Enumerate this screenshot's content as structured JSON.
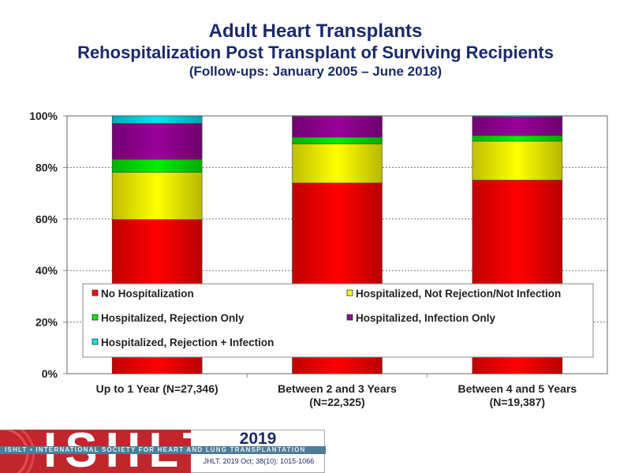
{
  "chart_data": {
    "type": "bar",
    "stacked": true,
    "title": "Adult Heart Transplants",
    "subtitle": "Rehospitalization Post Transplant of Surviving Recipients",
    "subsubtitle": "(Follow-ups: January 2005 – June 2018)",
    "xlabel": "",
    "ylabel": "",
    "ylim": [
      0,
      100
    ],
    "yticks": [
      "0%",
      "20%",
      "40%",
      "60%",
      "80%",
      "100%"
    ],
    "grid": true,
    "legend_position": "inside-bottom",
    "categories": [
      [
        "Up to 1 Year (N=27,346)"
      ],
      [
        "Between 2 and 3 Years",
        "(N=22,325)"
      ],
      [
        "Between 4 and 5 Years",
        "(N=19,387)"
      ]
    ],
    "series": [
      {
        "name": "No Hospitalization",
        "color": "#ff0000",
        "values": [
          59.8,
          74.0,
          75.1
        ]
      },
      {
        "name": "Hospitalized, Not Rejection/Not Infection",
        "color": "#ffff00",
        "values": [
          18.3,
          15.1,
          15.1
        ]
      },
      {
        "name": "Hospitalized, Rejection Only",
        "color": "#00ee00",
        "values": [
          5.0,
          2.6,
          2.1
        ]
      },
      {
        "name": "Hospitalized, Infection Only",
        "color": "#990099",
        "values": [
          14.0,
          8.1,
          7.4
        ]
      },
      {
        "name": "Hospitalized, Rejection + Infection",
        "color": "#00e5ee",
        "values": [
          2.9,
          0.2,
          0.3
        ]
      }
    ],
    "legend_order": [
      0,
      1,
      2,
      3,
      4
    ]
  },
  "footer": {
    "logo_text": "ISHLT",
    "band_text": "ISHLT • INTERNATIONAL SOCIETY FOR HEART AND LUNG TRANSPLANTATION",
    "year": "2019",
    "citation": "JHLT. 2019 Oct; 38(10): 1015-1066"
  }
}
